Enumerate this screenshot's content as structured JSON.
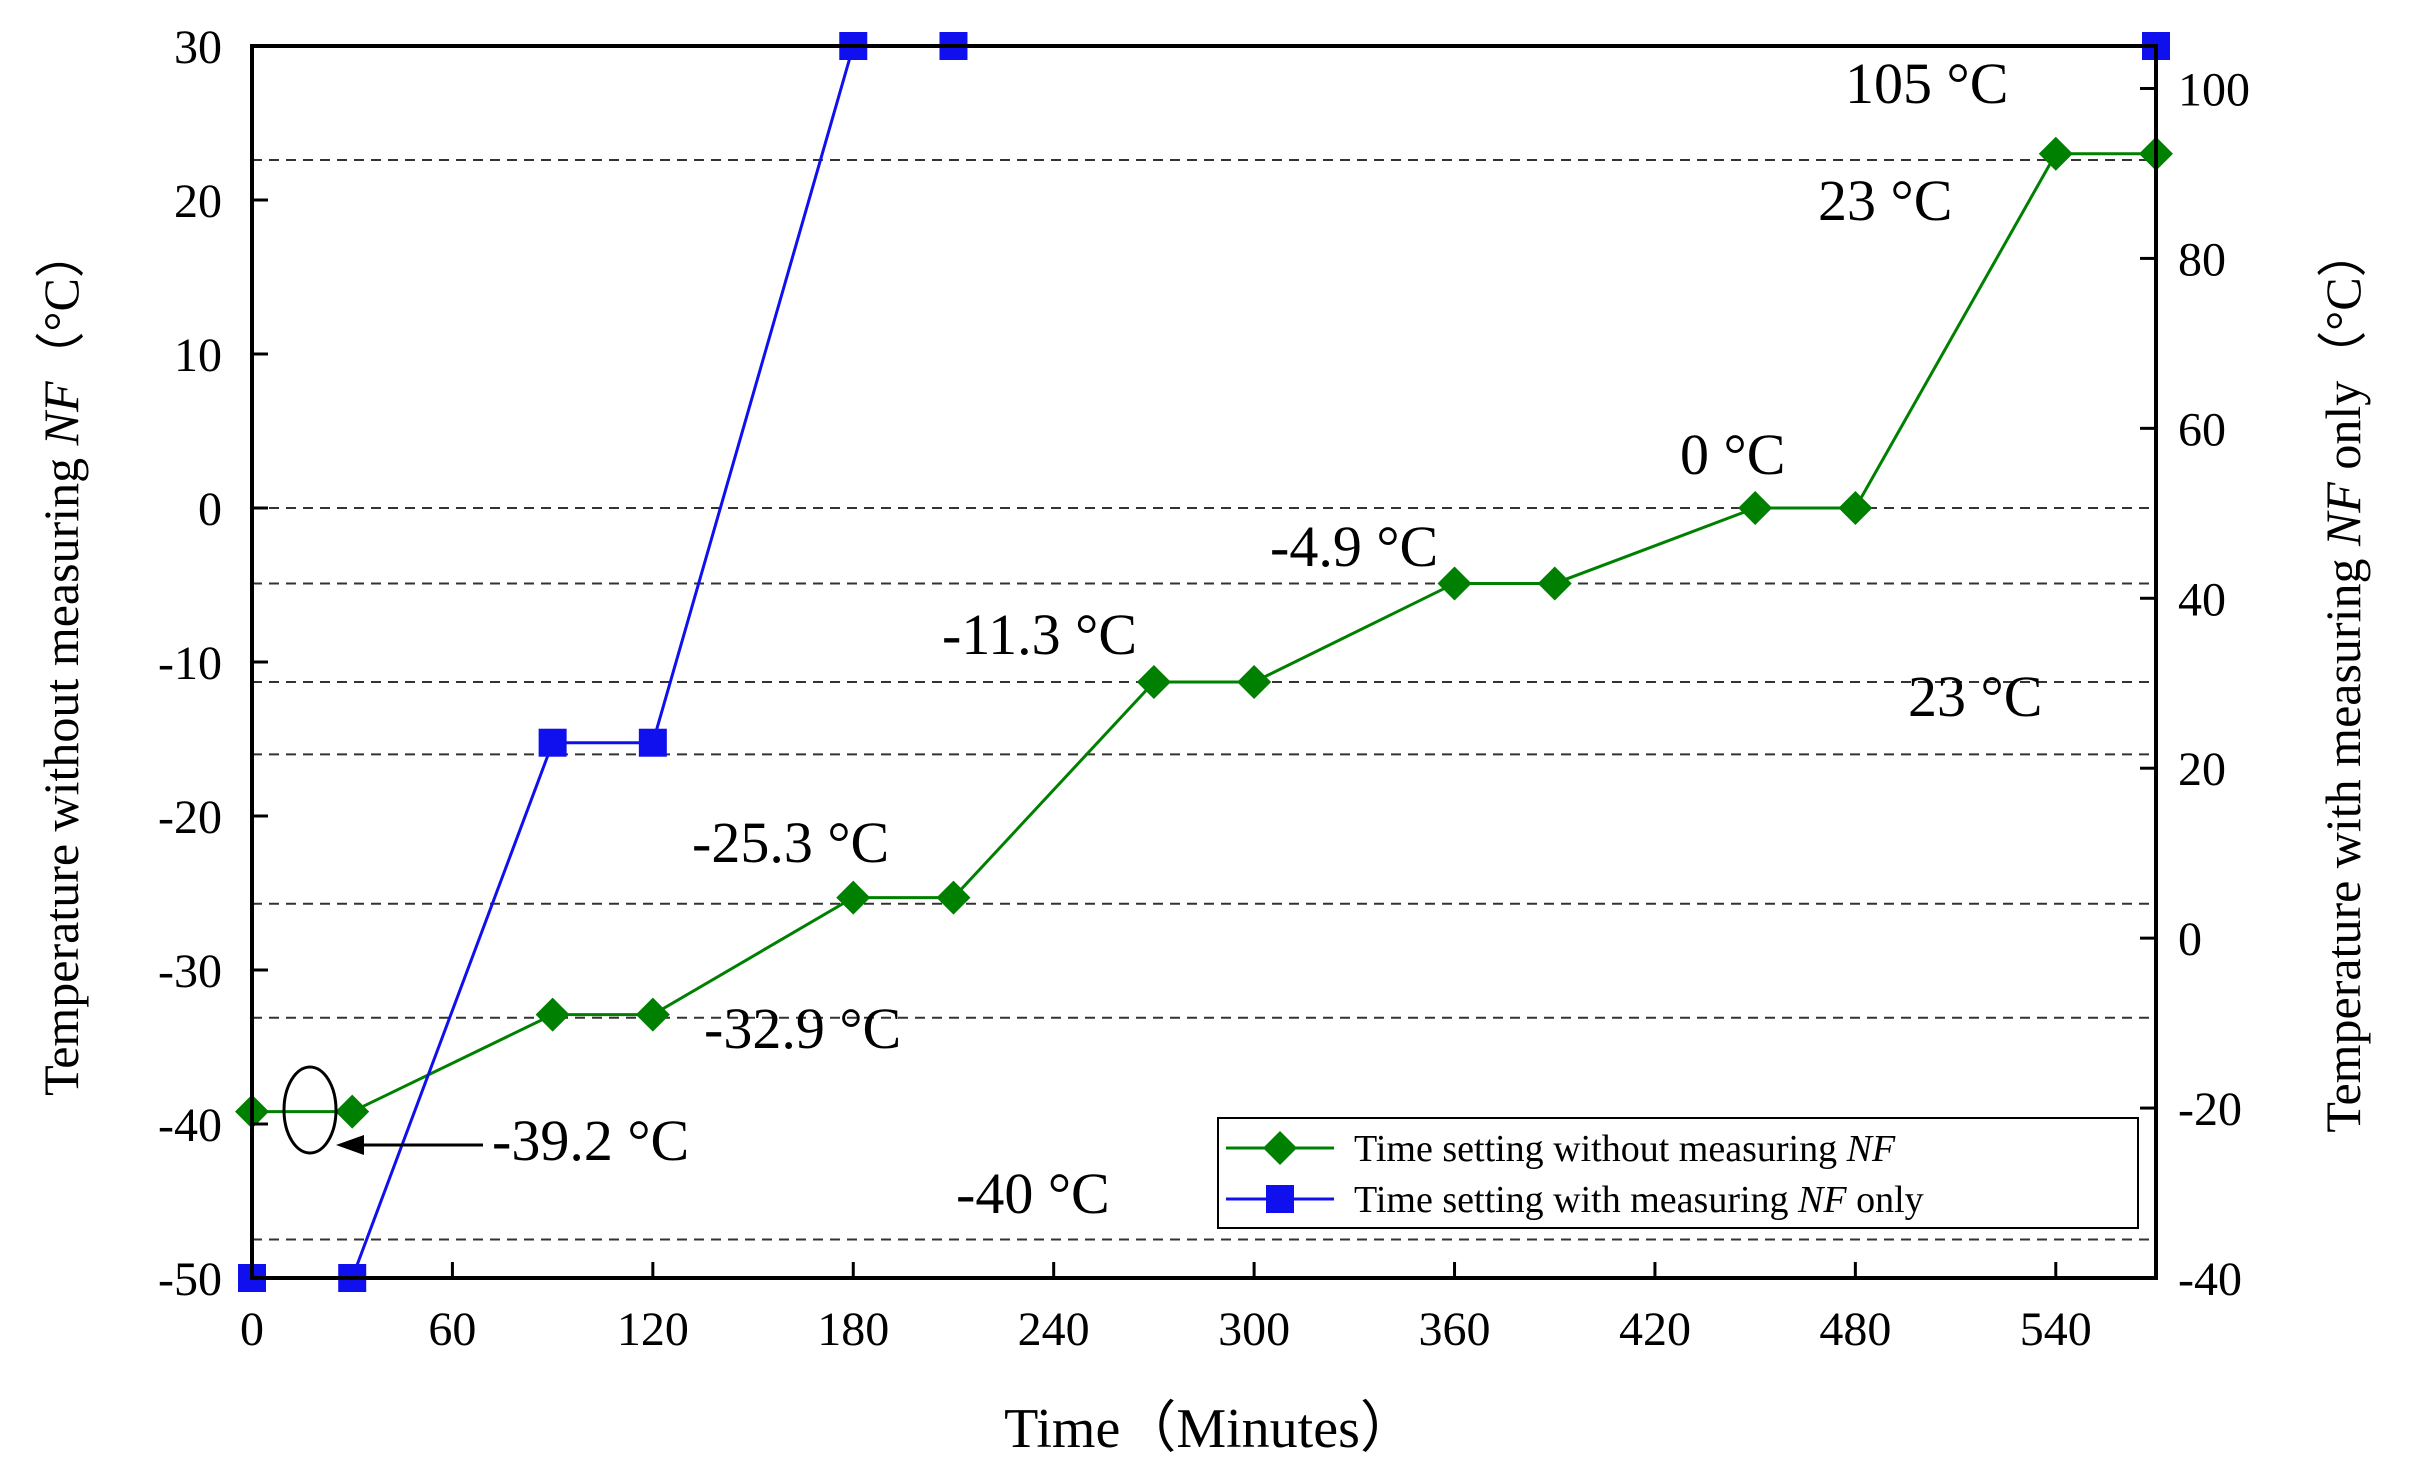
{
  "chart_data": {
    "type": "line",
    "x": {
      "label": "Time（Minutes）",
      "range": [
        0,
        570
      ],
      "ticks": [
        0,
        60,
        120,
        180,
        240,
        300,
        360,
        420,
        480,
        540
      ]
    },
    "y_left": {
      "label_prefix": "Temperature without measuring ",
      "label_italic": "NF",
      "label_suffix": "（°C）",
      "range": [
        -50,
        30
      ],
      "ticks": [
        -50,
        -40,
        -30,
        -20,
        -10,
        0,
        10,
        20,
        30
      ]
    },
    "y_right": {
      "label_prefix": "Temperature with measuring ",
      "label_italic": "NF",
      "label_suffix": " only（°C）",
      "range": [
        -40,
        105
      ],
      "ticks": [
        -40,
        -20,
        0,
        20,
        40,
        60,
        80,
        100
      ]
    },
    "series": [
      {
        "name": "without",
        "legend_prefix": "Time setting without measuring ",
        "legend_italic": "NF",
        "legend_suffix": "",
        "axis": "left",
        "color": "#008000",
        "marker": "diamond",
        "x": [
          0,
          30,
          90,
          120,
          180,
          210,
          270,
          300,
          360,
          390,
          450,
          480,
          540,
          570
        ],
        "y": [
          -39.2,
          -39.2,
          -32.9,
          -32.9,
          -25.3,
          -25.3,
          -11.3,
          -11.3,
          -4.9,
          -4.9,
          0,
          0,
          23,
          23
        ]
      },
      {
        "name": "with",
        "legend_prefix": "Time setting with measuring  ",
        "legend_italic": "NF",
        "legend_suffix": " only",
        "axis": "right",
        "color": "#1010ee",
        "marker": "square",
        "x": [
          0,
          30,
          90,
          120,
          180,
          210,
          570
        ],
        "y": [
          -40,
          -40,
          23,
          23,
          105,
          105,
          105
        ]
      }
    ],
    "annotations": [
      {
        "text": "105 °C"
      },
      {
        "text": "23 °C"
      },
      {
        "text": "0 °C"
      },
      {
        "text": "-4.9 °C"
      },
      {
        "text": "-11.3 °C"
      },
      {
        "text": "23 °C"
      },
      {
        "text": "-25.3 °C"
      },
      {
        "text": "-32.9 °C"
      },
      {
        "text": "-39.2 °C"
      },
      {
        "text": "-40 °C"
      }
    ],
    "reference_lines": [
      {
        "axis": "left",
        "value": 22.6
      },
      {
        "axis": "left",
        "value": 0
      },
      {
        "axis": "left",
        "value": -4.9
      },
      {
        "axis": "left",
        "value": -11.3
      },
      {
        "axis": "left",
        "value": -16
      },
      {
        "axis": "left",
        "value": -25.7
      },
      {
        "axis": "left",
        "value": -33.1
      },
      {
        "axis": "left",
        "value": -47.5
      }
    ],
    "legend_position": "bottom-right"
  }
}
